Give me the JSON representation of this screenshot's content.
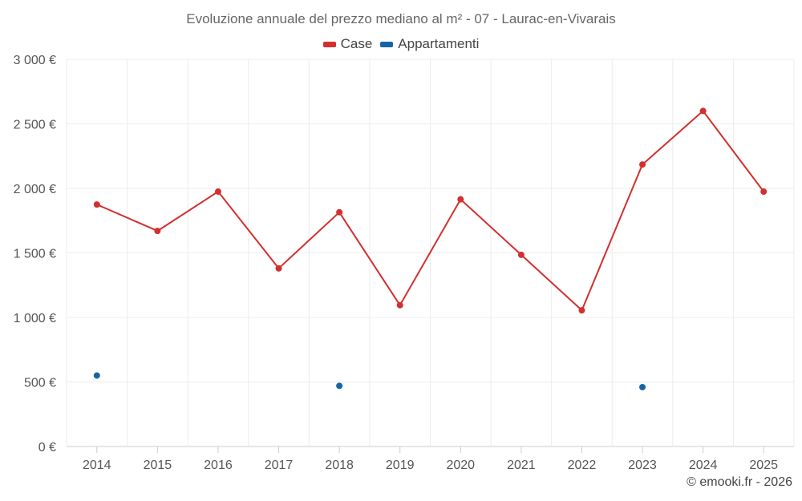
{
  "chart_data": {
    "type": "line",
    "title": "Evoluzione annuale del prezzo mediano al m² - 07 - Laurac-en-Vivarais",
    "categories": [
      "2014",
      "2015",
      "2016",
      "2017",
      "2018",
      "2019",
      "2020",
      "2021",
      "2022",
      "2023",
      "2024",
      "2025"
    ],
    "series": [
      {
        "name": "Case",
        "color": "#d32f2f",
        "connected": true,
        "values": [
          1875,
          1670,
          1975,
          1380,
          1815,
          1095,
          1915,
          1485,
          1055,
          2185,
          2600,
          1975
        ]
      },
      {
        "name": "Appartamenti",
        "color": "#1565a8",
        "connected": false,
        "values": [
          550,
          null,
          null,
          null,
          470,
          null,
          null,
          null,
          null,
          460,
          null,
          null
        ]
      }
    ],
    "ylim": [
      0,
      3000
    ],
    "yticks": [
      0,
      500,
      1000,
      1500,
      2000,
      2500,
      3000
    ],
    "ytick_labels": [
      "0 €",
      "500 €",
      "1 000 €",
      "1 500 €",
      "2 000 €",
      "2 500 €",
      "3 000 €"
    ],
    "xlabel": "",
    "ylabel": "",
    "grid": true,
    "legend": "top-center"
  },
  "credit": "© emooki.fr - 2026"
}
